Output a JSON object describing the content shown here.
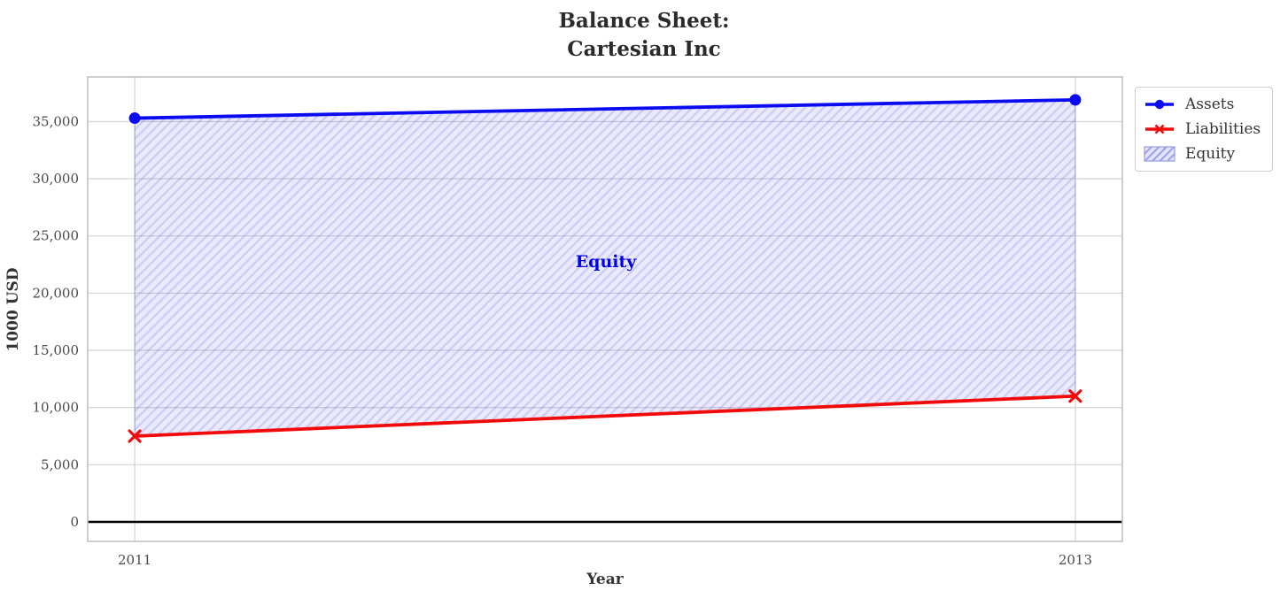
{
  "title": "Balance Sheet:\nCartesian Inc",
  "legend": {
    "items": [
      {
        "label": "Assets",
        "type": "line-circle",
        "color": "#0b0bf0"
      },
      {
        "label": "Liabilities",
        "type": "line-x",
        "color": "#f00a0a"
      },
      {
        "label": "Equity",
        "type": "hatch-patch",
        "color": "#9a9ae0"
      }
    ]
  },
  "chart_data": {
    "type": "line",
    "title": "Balance Sheet:\nCartesian Inc",
    "xlabel": "Year",
    "ylabel": "1000 USD",
    "x": [
      2011,
      2013
    ],
    "series": [
      {
        "name": "Assets",
        "values": [
          35300,
          36900
        ],
        "color": "#0b0bf0",
        "marker": "circle"
      },
      {
        "name": "Liabilities",
        "values": [
          7500,
          11000
        ],
        "color": "#f00a0a",
        "marker": "x"
      }
    ],
    "fill_between": {
      "name": "Equity",
      "upper": "Assets",
      "lower": "Liabilities",
      "fill_color": "rgba(90,90,235,0.13)",
      "hatch_color": "rgba(80,80,215,0.20)",
      "edge_color": "rgba(110,110,225,0.45)"
    },
    "annotation": {
      "label": "Equity",
      "x": 2012,
      "y": 22600,
      "color": "#0101e8"
    },
    "xticks": [
      2011,
      2013
    ],
    "yticks": [
      0,
      5000,
      10000,
      15000,
      20000,
      25000,
      30000,
      35000
    ],
    "xlim": [
      2010.9,
      2013.1
    ],
    "ylim": [
      -1700,
      38900
    ],
    "grid": true,
    "zero_line": true,
    "legend_position": "upper-right-outside"
  }
}
